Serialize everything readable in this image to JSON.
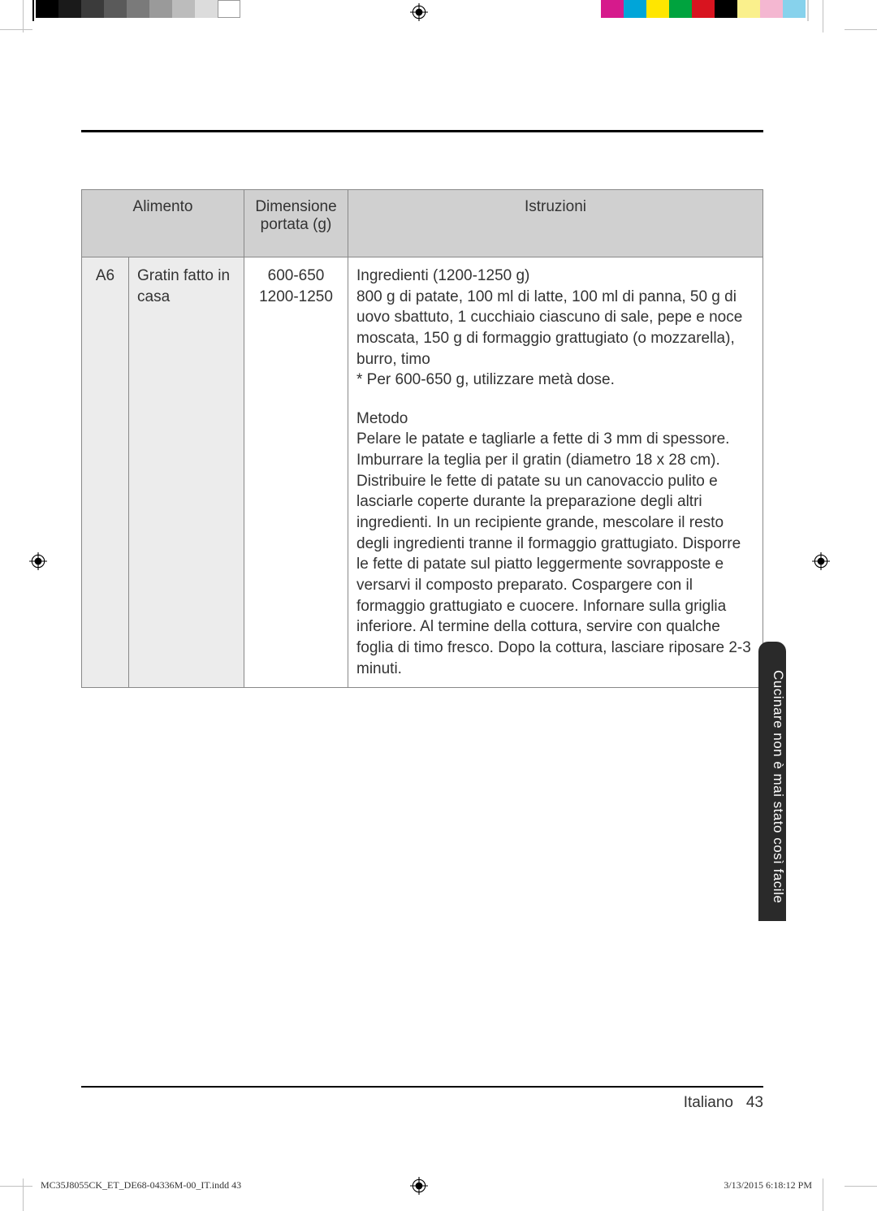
{
  "printer_bars_left": [
    "#000000",
    "#1a1a1a",
    "#3b3b3b",
    "#5a5a5a",
    "#7a7a7a",
    "#9a9a9a",
    "#bcbcbc",
    "#dcdcdc",
    "#ffffff"
  ],
  "printer_bars_right": [
    "#d61a8c",
    "#00a5d9",
    "#ffe600",
    "#00a33e",
    "#d8141f",
    "#000000",
    "#faf08c",
    "#f4b7d1",
    "#87d2ec"
  ],
  "table": {
    "headers": {
      "food": "Alimento",
      "size_line1": "Dimensione",
      "size_line2": "portata (g)",
      "instr": "Istruzioni"
    },
    "row": {
      "code": "A6",
      "food": "Gratin fatto in casa",
      "size1": "600-650",
      "size2": "1200-1250",
      "ingredients_title": "Ingredienti (1200-1250 g)",
      "ingredients_body": "800 g di patate, 100 ml di latte, 100 ml di panna, 50 g di uovo sbattuto, 1 cucchiaio ciascuno di sale, pepe e noce moscata, 150 g di formaggio grattugiato (o mozzarella), burro, timo",
      "ingredients_note": "* Per 600-650 g, utilizzare metà dose.",
      "method_title": "Metodo",
      "method_body": "Pelare le patate e tagliarle a fette di 3 mm di spessore. Imburrare la teglia per il gratin (diametro 18 x 28 cm). Distribuire le fette di patate su un canovaccio pulito e lasciarle coperte durante la preparazione degli altri ingredienti. In un recipiente grande, mescolare il resto degli ingredienti tranne il formaggio grattugiato. Disporre le fette di patate sul piatto leggermente sovrapposte e versarvi il composto preparato. Cospargere con il formaggio grattugiato e cuocere. Infornare sulla griglia inferiore. Al termine della cottura, servire con qualche foglia di timo fresco. Dopo la cottura, lasciare riposare 2-3 minuti."
    }
  },
  "side_tab": "Cucinare non è mai stato così facile",
  "page_lang": "Italiano",
  "page_num": "43",
  "footer_left": "MC35J8055CK_ET_DE68-04336M-00_IT.indd   43",
  "footer_right": "3/13/2015   6:18:12 PM",
  "colors": {
    "page_bg": "#ffffff",
    "header_bg": "#d0d0d0",
    "cell_shade": "#ececec",
    "border": "#888888",
    "rule": "#000000",
    "tab_bg": "#2a2a2a",
    "text": "#333333"
  },
  "fontsizes": {
    "body_pt": 14,
    "footer_pt": 9,
    "tab_pt": 13
  }
}
